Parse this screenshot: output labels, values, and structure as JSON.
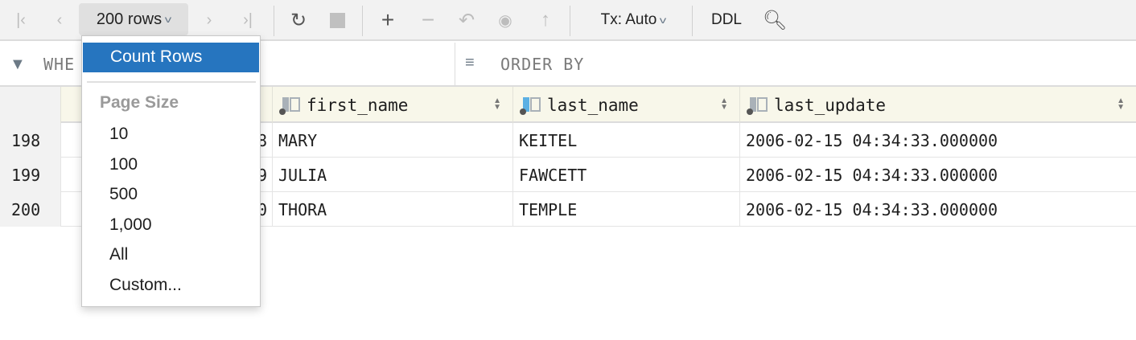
{
  "toolbar": {
    "rows_label": "200 rows",
    "tx_label": "Tx: Auto",
    "ddl_label": "DDL",
    "icons": [
      "first-page-icon",
      "previous-page-icon",
      "next-page-icon",
      "last-page-icon",
      "refresh-icon",
      "stop-icon",
      "add-row-icon",
      "delete-row-icon",
      "revert-icon",
      "submit-icon",
      "push-icon",
      "search-icon"
    ]
  },
  "filter": {
    "where_placeholder": "WHE",
    "order_placeholder": "ORDER BY"
  },
  "columns": [
    {
      "name": "first_name",
      "icon": "column-icon"
    },
    {
      "name": "last_name",
      "icon": "indexed-column-icon"
    },
    {
      "name": "last_update",
      "icon": "column-icon"
    }
  ],
  "rows": [
    {
      "num": "198",
      "id_partial": "8",
      "first_name": "MARY",
      "last_name": "KEITEL",
      "last_update": "2006-02-15 04:34:33.000000"
    },
    {
      "num": "199",
      "id_partial": "9",
      "first_name": "JULIA",
      "last_name": "FAWCETT",
      "last_update": "2006-02-15 04:34:33.000000"
    },
    {
      "num": "200",
      "id_partial": "0",
      "first_name": "THORA",
      "last_name": "TEMPLE",
      "last_update": "2006-02-15 04:34:33.000000"
    }
  ],
  "menu": {
    "count_rows": "Count Rows",
    "section": "Page Size",
    "items": [
      "10",
      "100",
      "500",
      "1,000",
      "All",
      "Custom..."
    ]
  },
  "colors": {
    "accent": "#2675bf",
    "header_bg": "#f8f7ea",
    "toolbar_bg": "#f2f2f2"
  }
}
